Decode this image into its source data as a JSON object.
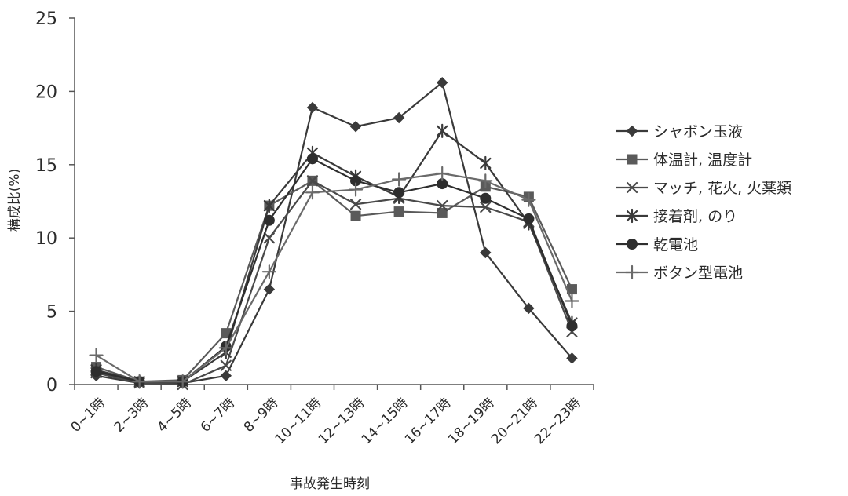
{
  "chart_data": {
    "type": "line",
    "xlabel": "事故発生時刻",
    "ylabel": "構成比(%)",
    "ylim": [
      0,
      25
    ],
    "yticks": [
      0,
      5,
      10,
      15,
      20,
      25
    ],
    "grid": false,
    "legend_position": "right",
    "categories": [
      "0~1時",
      "2~3時",
      "4~5時",
      "6~7時",
      "8~9時",
      "10~11時",
      "12~13時",
      "14~15時",
      "16~17時",
      "18~19時",
      "20~21時",
      "22~23時"
    ],
    "series": [
      {
        "name": "シャボン玉液",
        "marker": "diamond",
        "color": "#3a3a3a",
        "values": [
          0.6,
          0.1,
          0.1,
          0.6,
          6.5,
          18.9,
          17.6,
          18.2,
          20.6,
          9.0,
          5.2,
          1.8
        ]
      },
      {
        "name": "体温計, 温度計",
        "marker": "square",
        "color": "#5a5a5a",
        "values": [
          1.2,
          0.2,
          0.3,
          3.5,
          12.2,
          13.9,
          11.5,
          11.8,
          11.7,
          13.5,
          12.8,
          6.5
        ]
      },
      {
        "name": "マッチ, 花火, 火薬類",
        "marker": "x",
        "color": "#4a4a4a",
        "values": [
          0.8,
          0.1,
          0.0,
          1.3,
          10.0,
          13.9,
          12.3,
          12.7,
          12.2,
          12.1,
          11.1,
          3.6
        ]
      },
      {
        "name": "接着剤, のり",
        "marker": "asterisk",
        "color": "#3a3a3a",
        "values": [
          1.0,
          0.2,
          0.2,
          2.2,
          12.2,
          15.8,
          14.2,
          12.8,
          17.3,
          15.1,
          11.0,
          4.2
        ]
      },
      {
        "name": "乾電池",
        "marker": "circle",
        "color": "#2e2e2e",
        "values": [
          0.9,
          0.2,
          0.2,
          2.6,
          11.2,
          15.4,
          13.9,
          13.1,
          13.7,
          12.7,
          11.3,
          4.0
        ]
      },
      {
        "name": "ボタン型電池",
        "marker": "plus",
        "color": "#6a6a6a",
        "values": [
          2.0,
          0.2,
          0.2,
          2.5,
          7.7,
          13.1,
          13.3,
          14.0,
          14.4,
          13.9,
          12.6,
          5.7
        ]
      }
    ]
  }
}
